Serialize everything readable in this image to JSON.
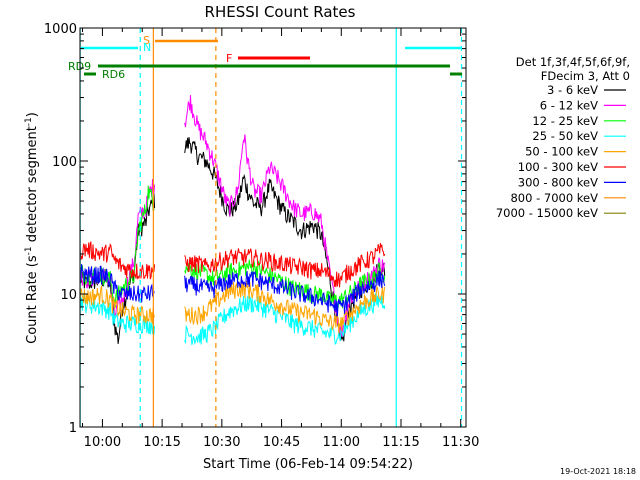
{
  "chart_data": {
    "type": "line",
    "title": "RHESSI Count Rates",
    "xlabel": "Start Time (06-Feb-14 09:54:22)",
    "ylabel_main": "Count Rate (s",
    "ylabel_sup1": "-1",
    "ylabel_mid": " detector segment",
    "ylabel_sup2": "-1",
    "ylabel_end": ")",
    "yscale": "log",
    "ylim": [
      1,
      1000
    ],
    "xlim_minutes": [
      "09:54:22",
      "11:31:20"
    ],
    "x_ticks": [
      {
        "m": 0,
        "label": "10:00"
      },
      {
        "m": 15,
        "label": "10:15"
      },
      {
        "m": 30,
        "label": "10:30"
      },
      {
        "m": 45,
        "label": "10:45"
      },
      {
        "m": 60,
        "label": "11:00"
      },
      {
        "m": 75,
        "label": "11:15"
      },
      {
        "m": 90,
        "label": "11:30"
      }
    ],
    "y_ticks": [
      {
        "v": 1,
        "label": "1"
      },
      {
        "v": 10,
        "label": "10"
      },
      {
        "v": 100,
        "label": "100"
      },
      {
        "v": 1000,
        "label": "1000"
      }
    ],
    "legend_header": [
      "Det 1f,3f,4f,5f,6f,9f,",
      "FDecim 3, Att 0"
    ],
    "series": [
      {
        "name": "3 - 6 keV",
        "color": "#000000",
        "values": [
          [
            -5.6,
            13
          ],
          [
            -4,
            12
          ],
          [
            0,
            13
          ],
          [
            2,
            12
          ],
          [
            3,
            6
          ],
          [
            4,
            4.5
          ],
          [
            5,
            8
          ],
          [
            8,
            15
          ],
          [
            9,
            30
          ],
          [
            11,
            35
          ],
          [
            11.5,
            42
          ],
          [
            21,
            130
          ],
          [
            22,
            140
          ],
          [
            24,
            110
          ],
          [
            26,
            100
          ],
          [
            28,
            80
          ],
          [
            31,
            45
          ],
          [
            32,
            42
          ],
          [
            34,
            48
          ],
          [
            35.5,
            75
          ],
          [
            36.5,
            60
          ],
          [
            38,
            48
          ],
          [
            40,
            45
          ],
          [
            42,
            65
          ],
          [
            44,
            50
          ],
          [
            46,
            40
          ],
          [
            48,
            35
          ],
          [
            50,
            30
          ],
          [
            53,
            33
          ],
          [
            55,
            28
          ],
          [
            57,
            14
          ],
          [
            59,
            6
          ],
          [
            60,
            4
          ],
          [
            62,
            8
          ],
          [
            65,
            11
          ],
          [
            68,
            13
          ],
          [
            69.5,
            16
          ],
          [
            71,
            15
          ]
        ]
      },
      {
        "name": "6 - 12 keV",
        "color": "#ff00ff",
        "values": [
          [
            -5.6,
            14
          ],
          [
            -4,
            13
          ],
          [
            0,
            14
          ],
          [
            2,
            13
          ],
          [
            3,
            7
          ],
          [
            5,
            9
          ],
          [
            8,
            18
          ],
          [
            9,
            38
          ],
          [
            11,
            45
          ],
          [
            11.5,
            55
          ],
          [
            21,
            210
          ],
          [
            22,
            290
          ],
          [
            24,
            180
          ],
          [
            26,
            140
          ],
          [
            28,
            100
          ],
          [
            31,
            50
          ],
          [
            32,
            45
          ],
          [
            34,
            60
          ],
          [
            35.5,
            160
          ],
          [
            36.5,
            100
          ],
          [
            38,
            60
          ],
          [
            40,
            55
          ],
          [
            42,
            90
          ],
          [
            44,
            75
          ],
          [
            46,
            58
          ],
          [
            48,
            45
          ],
          [
            50,
            40
          ],
          [
            53,
            42
          ],
          [
            55,
            35
          ],
          [
            57,
            15
          ],
          [
            59,
            7
          ],
          [
            60,
            5
          ],
          [
            62,
            9
          ],
          [
            65,
            12
          ],
          [
            68,
            14
          ],
          [
            69.5,
            17
          ],
          [
            71,
            16
          ]
        ]
      },
      {
        "name": "12 - 25 keV",
        "color": "#00ff00",
        "values": [
          [
            -5.6,
            15
          ],
          [
            -4,
            14
          ],
          [
            0,
            14
          ],
          [
            2,
            13
          ],
          [
            3,
            9
          ],
          [
            5,
            11
          ],
          [
            8,
            14
          ],
          [
            9,
            30
          ],
          [
            11,
            45
          ],
          [
            11.5,
            60
          ],
          [
            21,
            16
          ],
          [
            24,
            15
          ],
          [
            26,
            14
          ],
          [
            28,
            13
          ],
          [
            30,
            14
          ],
          [
            32,
            15
          ],
          [
            34,
            15
          ],
          [
            36,
            16
          ],
          [
            38,
            16
          ],
          [
            40,
            15
          ],
          [
            42,
            14
          ],
          [
            44,
            13
          ],
          [
            46,
            12
          ],
          [
            48,
            11
          ],
          [
            50,
            11
          ],
          [
            53,
            10
          ],
          [
            55,
            10
          ],
          [
            57,
            9
          ],
          [
            59,
            9
          ],
          [
            60,
            9
          ],
          [
            62,
            10
          ],
          [
            65,
            12
          ],
          [
            68,
            13
          ],
          [
            69.5,
            15
          ],
          [
            71,
            14
          ]
        ]
      },
      {
        "name": "25 - 50 keV",
        "color": "#00ffff",
        "values": [
          [
            -5.6,
            9
          ],
          [
            -4,
            8.5
          ],
          [
            0,
            8
          ],
          [
            2,
            7.5
          ],
          [
            3,
            6.5
          ],
          [
            5,
            6
          ],
          [
            8,
            6
          ],
          [
            9,
            6
          ],
          [
            11,
            6
          ],
          [
            21,
            5
          ],
          [
            24,
            4.8
          ],
          [
            26,
            5
          ],
          [
            28,
            5.5
          ],
          [
            30,
            6.5
          ],
          [
            32,
            7.5
          ],
          [
            34,
            8
          ],
          [
            36,
            8.5
          ],
          [
            38,
            8.5
          ],
          [
            40,
            8
          ],
          [
            42,
            7.5
          ],
          [
            44,
            7
          ],
          [
            46,
            6.5
          ],
          [
            48,
            6
          ],
          [
            50,
            5.8
          ],
          [
            53,
            5.5
          ],
          [
            55,
            5.2
          ],
          [
            57,
            5
          ],
          [
            59,
            5
          ],
          [
            60,
            5
          ],
          [
            62,
            6
          ],
          [
            65,
            7.5
          ],
          [
            68,
            8.5
          ],
          [
            69.5,
            9
          ],
          [
            71,
            9
          ]
        ]
      },
      {
        "name": "50 - 100 keV",
        "color": "#ffa500",
        "values": [
          [
            -5.6,
            10
          ],
          [
            -4,
            9.5
          ],
          [
            0,
            10
          ],
          [
            2,
            9
          ],
          [
            3,
            8
          ],
          [
            5,
            7.5
          ],
          [
            8,
            7
          ],
          [
            9,
            7
          ],
          [
            11,
            7
          ],
          [
            21,
            7
          ],
          [
            24,
            7
          ],
          [
            26,
            7.5
          ],
          [
            28,
            8.5
          ],
          [
            30,
            9.5
          ],
          [
            32,
            10.5
          ],
          [
            34,
            11
          ],
          [
            36,
            11
          ],
          [
            38,
            10.5
          ],
          [
            40,
            10
          ],
          [
            42,
            9
          ],
          [
            44,
            8.5
          ],
          [
            46,
            8
          ],
          [
            48,
            7.5
          ],
          [
            50,
            7.2
          ],
          [
            53,
            7
          ],
          [
            55,
            6.5
          ],
          [
            57,
            6.2
          ],
          [
            59,
            6
          ],
          [
            60,
            6
          ],
          [
            62,
            7
          ],
          [
            65,
            8.5
          ],
          [
            68,
            9.5
          ],
          [
            69.5,
            10
          ],
          [
            71,
            10
          ]
        ]
      },
      {
        "name": "100 - 300 keV",
        "color": "#ff0000",
        "values": [
          [
            -5.6,
            21
          ],
          [
            -4,
            22
          ],
          [
            0,
            20
          ],
          [
            2,
            21
          ],
          [
            3,
            18
          ],
          [
            5,
            16
          ],
          [
            8,
            15
          ],
          [
            9,
            15
          ],
          [
            11,
            15
          ],
          [
            21,
            17
          ],
          [
            24,
            17
          ],
          [
            26,
            16
          ],
          [
            28,
            17
          ],
          [
            30,
            18
          ],
          [
            32,
            19
          ],
          [
            34,
            19
          ],
          [
            36,
            19
          ],
          [
            38,
            19
          ],
          [
            40,
            18
          ],
          [
            42,
            18
          ],
          [
            44,
            17
          ],
          [
            46,
            17
          ],
          [
            48,
            16
          ],
          [
            50,
            16
          ],
          [
            53,
            15
          ],
          [
            55,
            15
          ],
          [
            57,
            14
          ],
          [
            59,
            13
          ],
          [
            60,
            13
          ],
          [
            62,
            15
          ],
          [
            65,
            17
          ],
          [
            68,
            19
          ],
          [
            69.5,
            21
          ],
          [
            71,
            21
          ]
        ]
      },
      {
        "name": "300 - 800 keV",
        "color": "#0000ff",
        "values": [
          [
            -5.6,
            15
          ],
          [
            -4,
            14
          ],
          [
            0,
            14
          ],
          [
            2,
            13
          ],
          [
            3,
            11
          ],
          [
            5,
            10
          ],
          [
            8,
            10
          ],
          [
            9,
            10
          ],
          [
            11,
            10
          ],
          [
            21,
            12
          ],
          [
            24,
            11.5
          ],
          [
            26,
            11
          ],
          [
            28,
            11
          ],
          [
            30,
            12
          ],
          [
            32,
            12.5
          ],
          [
            34,
            13
          ],
          [
            36,
            13
          ],
          [
            38,
            13
          ],
          [
            40,
            12.5
          ],
          [
            42,
            12
          ],
          [
            44,
            11.5
          ],
          [
            46,
            11
          ],
          [
            48,
            10.5
          ],
          [
            50,
            10
          ],
          [
            53,
            9.5
          ],
          [
            55,
            9
          ],
          [
            57,
            8.5
          ],
          [
            59,
            8
          ],
          [
            60,
            8
          ],
          [
            62,
            9
          ],
          [
            65,
            11
          ],
          [
            68,
            12
          ],
          [
            69.5,
            13
          ],
          [
            71,
            13
          ]
        ]
      },
      {
        "name": "800 - 7000 keV",
        "color": "#ff8c00",
        "values": []
      },
      {
        "name": "7000 - 15000 keV",
        "color": "#808000",
        "values": []
      }
    ],
    "annotations": {
      "top_labels": [
        {
          "text": "S",
          "color": "#ff8c00"
        },
        {
          "text": "N",
          "color": "#00ffff"
        },
        {
          "text": "F",
          "color": "#ff0000"
        }
      ],
      "rd_labels": [
        {
          "text": "RD9"
        },
        {
          "text": "RD6"
        }
      ],
      "vertical_lines": [
        {
          "m": -5.6,
          "color": "#00ffff",
          "dash": false
        },
        {
          "m": 9.5,
          "color": "#00ffff",
          "dash": true
        },
        {
          "m": 12.8,
          "color": "#ff8c00",
          "dash": false
        },
        {
          "m": 28.5,
          "color": "#ff8c00",
          "dash": true
        },
        {
          "m": 73.8,
          "color": "#00ffff",
          "dash": false
        },
        {
          "m": 90.2,
          "color": "#00ffff",
          "dash": true
        }
      ]
    },
    "grid": false,
    "legend_position": "right"
  },
  "footer": {
    "timestamp": "19-Oct-2021 18:18"
  }
}
